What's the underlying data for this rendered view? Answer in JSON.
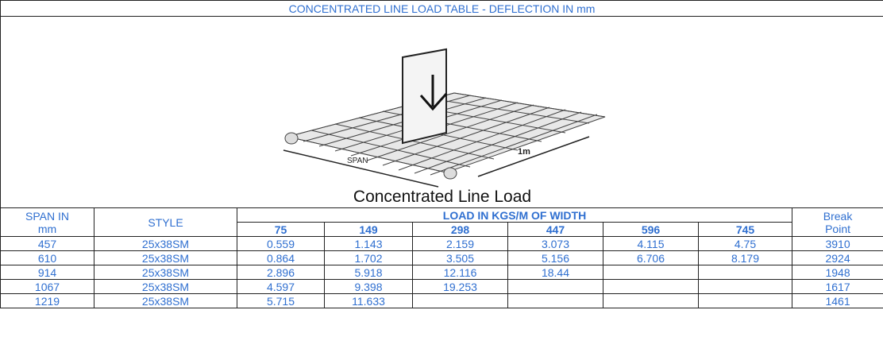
{
  "title": "CONCENTRATED LINE LOAD TABLE - DEFLECTION IN mm",
  "figure": {
    "span_label": "SPAN",
    "width_label": "1m",
    "caption": "Concentrated Line Load"
  },
  "table": {
    "span_header": "SPAN IN",
    "span_unit": "mm",
    "style_header": "STYLE",
    "load_header": "LOAD IN KGS/M OF WIDTH",
    "loads": [
      75,
      149,
      298,
      447,
      596,
      745
    ],
    "break_header": "Break",
    "break_unit": "Point",
    "rows": [
      [
        457,
        "25x38SM",
        "0.559",
        "1.143",
        "2.159",
        "3.073",
        "4.115",
        "4.75",
        3910
      ],
      [
        610,
        "25x38SM",
        "0.864",
        "1.702",
        "3.505",
        "5.156",
        "6.706",
        "8.179",
        2924
      ],
      [
        914,
        "25x38SM",
        "2.896",
        "5.918",
        "12.116",
        "18.44",
        null,
        null,
        1948
      ],
      [
        1067,
        "25x38SM",
        "4.597",
        "9.398",
        "19.253",
        null,
        null,
        null,
        1617
      ],
      [
        1219,
        "25x38SM",
        "5.715",
        "11.633",
        null,
        null,
        null,
        null,
        1461
      ]
    ]
  }
}
